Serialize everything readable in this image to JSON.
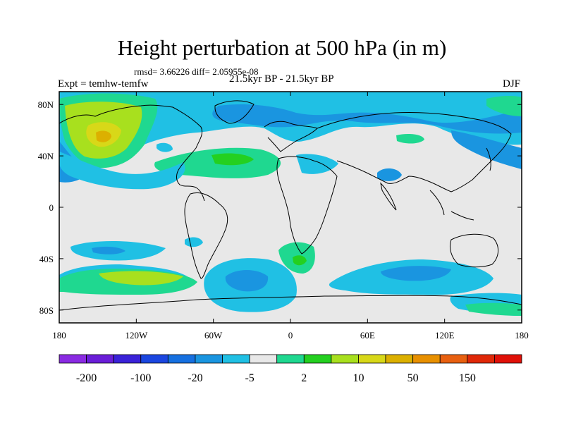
{
  "title": "Height perturbation at 500 hPa (in m)",
  "stats": "rmsd= 3.66226 diff= 2.05955e-08",
  "left_label": "Expt = temhw-temfw",
  "center_label": "21.5kyr BP - 21.5kyr BP",
  "right_label": "DJF",
  "map": {
    "lon_ticks": [
      "180",
      "120W",
      "60W",
      "0",
      "60E",
      "120E",
      "180"
    ],
    "lat_ticks": [
      "80N",
      "40N",
      "0",
      "40S",
      "80S"
    ],
    "background_color": "#e8e8e8"
  },
  "colorbar": {
    "colors": [
      "#8a2be2",
      "#6a1ed8",
      "#3a22d8",
      "#1b46e0",
      "#1670e0",
      "#1a95e0",
      "#20c0e4",
      "#e8e8e8",
      "#1fd890",
      "#24d020",
      "#a8e01e",
      "#d8d818",
      "#dcb000",
      "#e89000",
      "#e86010",
      "#e02808",
      "#e01008"
    ],
    "labels": [
      "-200",
      "-100",
      "-20",
      "-5",
      "2",
      "10",
      "50",
      "150"
    ]
  }
}
